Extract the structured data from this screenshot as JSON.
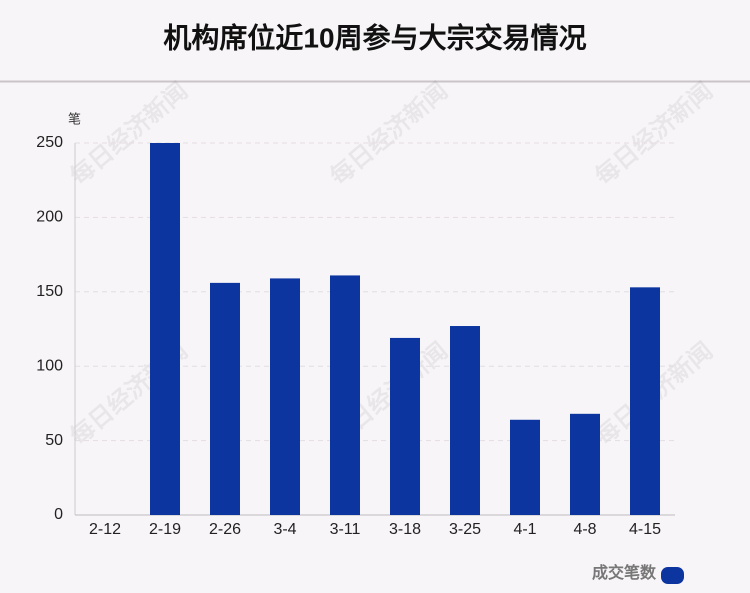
{
  "chart_data": {
    "type": "bar",
    "title": "机构席位近10周参与大宗交易情况",
    "y_unit": "笔",
    "categories": [
      "2-12",
      "2-19",
      "2-26",
      "3-4",
      "3-11",
      "3-18",
      "3-25",
      "4-1",
      "4-8",
      "4-15"
    ],
    "series": [
      {
        "name": "成交笔数",
        "color": "#0c35a0",
        "values": [
          0,
          250,
          156,
          159,
          161,
          119,
          127,
          64,
          68,
          153
        ]
      }
    ],
    "ylim": [
      0,
      250
    ],
    "yticks": [
      0,
      50,
      100,
      150,
      200,
      250
    ],
    "grid": true,
    "legend": "bottom-right",
    "watermark": "每日经济新闻"
  }
}
